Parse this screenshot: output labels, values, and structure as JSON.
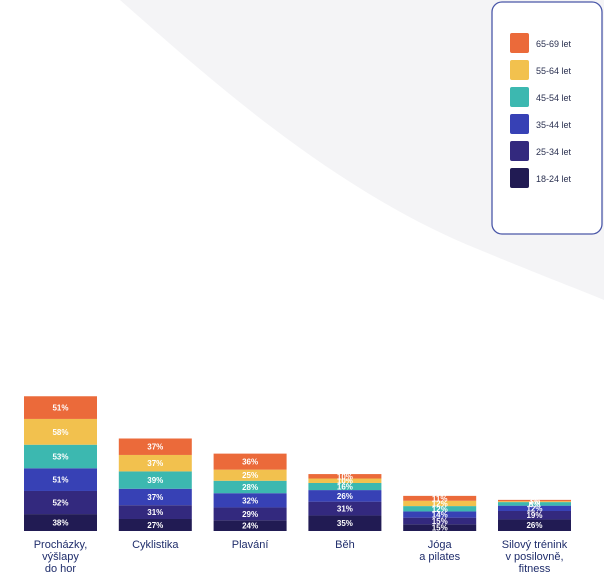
{
  "chart_data": {
    "type": "bar",
    "stacked": true,
    "categories": [
      [
        "Procházky,",
        "výšlapy",
        "do hor"
      ],
      [
        "Cyklistika"
      ],
      [
        "Plavání"
      ],
      [
        "Běh"
      ],
      [
        "Jóga",
        "a pilates"
      ],
      [
        "Silový trénink",
        "v posilovně,",
        "fitness"
      ]
    ],
    "series": [
      {
        "name": "18-24 let",
        "color": "#211b53",
        "values": [
          38,
          27,
          24,
          35,
          15,
          26
        ]
      },
      {
        "name": "25-34 let",
        "color": "#33297e",
        "values": [
          52,
          31,
          29,
          31,
          15,
          19
        ]
      },
      {
        "name": "35-44 let",
        "color": "#3741b5",
        "values": [
          51,
          37,
          32,
          26,
          14,
          12
        ]
      },
      {
        "name": "45-54 let",
        "color": "#3cb8b0",
        "values": [
          53,
          39,
          28,
          16,
          12,
          8
        ]
      },
      {
        "name": "55-64 let",
        "color": "#f2c14e",
        "values": [
          58,
          37,
          25,
          10,
          12,
          2
        ]
      },
      {
        "name": "65-69 let",
        "color": "#eb6a3a",
        "values": [
          51,
          37,
          36,
          10,
          11,
          3
        ]
      }
    ],
    "value_suffix": "%",
    "legend": {
      "placement": "top-right",
      "order": [
        "65-69 let",
        "55-64 let",
        "45-54 let",
        "35-44 let",
        "25-34 let",
        "18-24 let"
      ]
    },
    "grid": false
  }
}
